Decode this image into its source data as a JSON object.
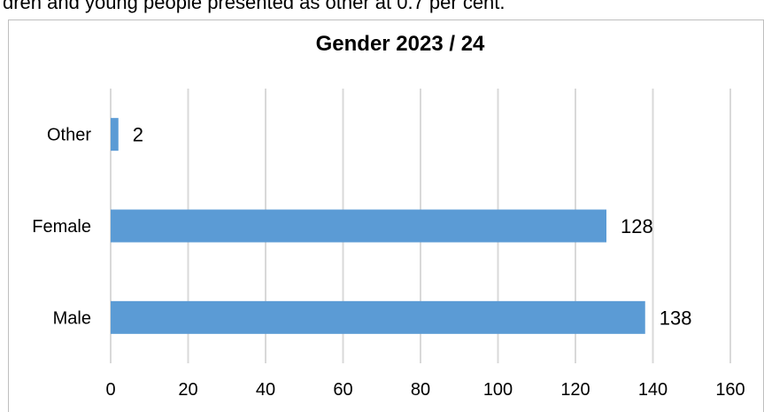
{
  "context_text": "dren and young people presented as other at 0.7 per cent.",
  "colors": {
    "bar": "#5b9bd5",
    "grid": "#d9d9d9",
    "frame": "#bfbfbf"
  },
  "chart_data": {
    "type": "bar",
    "orientation": "horizontal",
    "title": "Gender 2023 / 24",
    "xlabel": "",
    "ylabel": "",
    "categories": [
      "Other",
      "Female",
      "Male"
    ],
    "values": [
      2,
      128,
      138
    ],
    "xlim": [
      0,
      160
    ],
    "x_ticks": [
      0,
      20,
      40,
      60,
      80,
      100,
      120,
      140,
      160
    ],
    "grid": true,
    "data_labels": true,
    "legend": false
  }
}
